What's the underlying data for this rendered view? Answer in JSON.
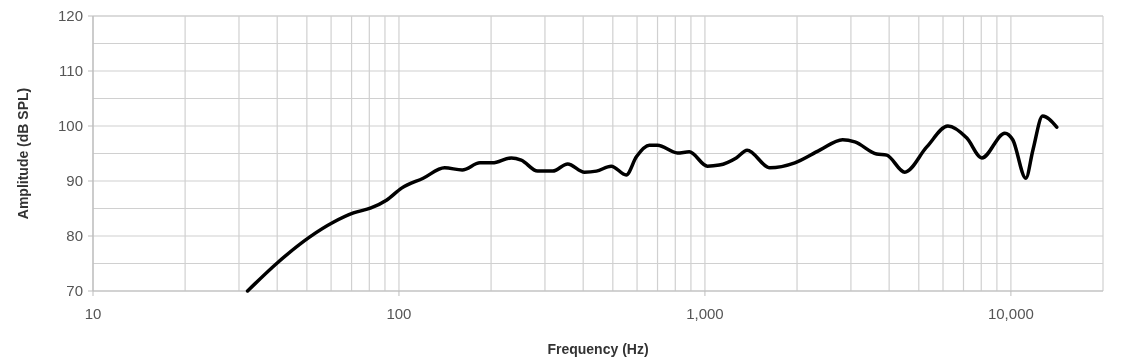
{
  "chart_data": {
    "type": "line",
    "xlabel": "Frequency (Hz)",
    "ylabel": "Amplitude (dB SPL)",
    "log": "x",
    "grid": true,
    "marker": "none",
    "line_style": "solid",
    "xlim": [
      10,
      20000
    ],
    "ylim": [
      70,
      120
    ],
    "xticks": [
      10,
      {
        "value": 20,
        "label": null
      },
      {
        "value": 30,
        "label": null
      },
      {
        "value": 40,
        "label": null
      },
      {
        "value": 50,
        "label": null
      },
      {
        "value": 60,
        "label": null
      },
      {
        "value": 70,
        "label": null
      },
      {
        "value": 80,
        "label": null
      },
      {
        "value": 90,
        "label": null
      },
      100,
      {
        "value": 200,
        "label": null
      },
      {
        "value": 300,
        "label": null
      },
      {
        "value": 400,
        "label": null
      },
      {
        "value": 500,
        "label": null
      },
      {
        "value": 600,
        "label": null
      },
      {
        "value": 700,
        "label": null
      },
      {
        "value": 800,
        "label": null
      },
      {
        "value": 900,
        "label": null
      },
      {
        "value": 1000,
        "label": "1,000"
      },
      {
        "value": 2000,
        "label": null
      },
      {
        "value": 3000,
        "label": null
      },
      {
        "value": 4000,
        "label": null
      },
      {
        "value": 5000,
        "label": null
      },
      {
        "value": 6000,
        "label": null
      },
      {
        "value": 7000,
        "label": null
      },
      {
        "value": 8000,
        "label": null
      },
      {
        "value": 9000,
        "label": null
      },
      {
        "value": 10000,
        "label": "10,000"
      }
    ],
    "yticks": [
      70,
      {
        "value": 75,
        "label": null
      },
      80,
      {
        "value": 85,
        "label": null
      },
      90,
      {
        "value": 95,
        "label": null
      },
      100,
      {
        "value": 105,
        "label": null
      },
      110,
      {
        "value": 115,
        "label": null
      },
      120
    ],
    "series": [
      {
        "color": "#000000",
        "x": [
          32,
          40,
          51,
          61,
          71,
          81,
          91,
          102,
          120,
          141,
          161,
          184,
          202,
          233,
          251,
          284,
          318,
          356,
          404,
          442,
          494,
          553,
          597,
          658,
          700,
          813,
          889,
          1019,
          1114,
          1266,
          1374,
          1630,
          1967,
          2373,
          2818,
          3090,
          3641,
          3926,
          4498,
          5309,
          6223,
          7178,
          8036,
          9553,
          10140,
          11190,
          11800,
          12700,
          14120
        ],
        "values": [
          70,
          75.1,
          79.8,
          82.5,
          84.2,
          85.1,
          86.5,
          88.7,
          90.5,
          92.4,
          92,
          93.3,
          93.3,
          94.2,
          93.8,
          91.8,
          91.8,
          93.1,
          91.6,
          91.8,
          92.7,
          91.1,
          94.4,
          96.5,
          96.5,
          95.1,
          95.3,
          92.7,
          92.9,
          94.2,
          95.6,
          92.4,
          93.3,
          95.6,
          97.5,
          97.1,
          94.9,
          94.7,
          91.6,
          96.2,
          100,
          97.8,
          94.2,
          98.7,
          97.5,
          90.5,
          95.6,
          101.8,
          99.8
        ]
      }
    ]
  }
}
